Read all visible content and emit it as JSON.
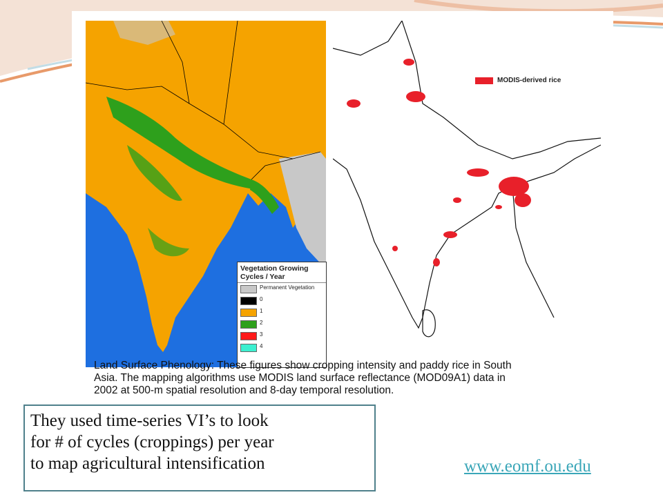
{
  "slide": {
    "background_color": "#ffffff",
    "accent_swoosh_colors": [
      "#e89a6a",
      "#c2dde6"
    ]
  },
  "figure": {
    "left_map": {
      "legend": {
        "title_line1": "Vegetation Growing",
        "title_line2": "Cycles / Year",
        "items": [
          {
            "label": "Permanent Vegetation",
            "color": "#c8c8c8"
          },
          {
            "label": "0",
            "color": "#000000"
          },
          {
            "label": "1",
            "color": "#f5a300"
          },
          {
            "label": "2",
            "color": "#2ea01c"
          },
          {
            "label": "3",
            "color": "#ff1a1a"
          },
          {
            "label": "4",
            "color": "#3cf0d0"
          }
        ]
      },
      "colors": {
        "ocean": "#1e6fe0",
        "land": "#f5a300",
        "crop2": "#2ea01c",
        "permanent": "#c8c8c8"
      }
    },
    "right_map": {
      "legend_label": "MODIS-derived rice",
      "legend_color": "#e8202a"
    },
    "caption_line1": "Land Surface Phenology: These figures show cropping intensity and paddy rice in South",
    "caption_line2": "Asia. The mapping algorithms use MODIS land surface reflectance (MOD09A1) data in",
    "caption_line3": "2002 at 500-m spatial resolution and 8-day temporal resolution."
  },
  "callout": {
    "line1": "They used time-series VI’s to look",
    "line2": "for # of cycles (croppings) per year",
    "line3": "to map agricultural intensification",
    "border_color": "#4e7f8a"
  },
  "link": {
    "text": "www.eomf.ou.edu",
    "color": "#3aa6b8"
  }
}
